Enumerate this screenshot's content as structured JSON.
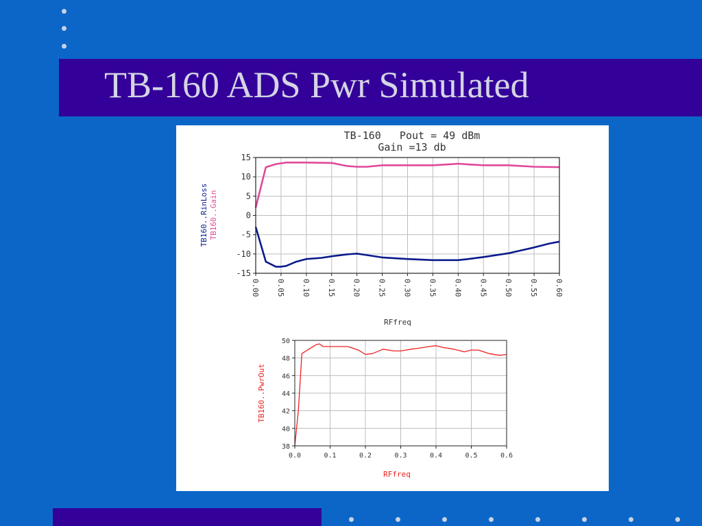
{
  "slide": {
    "title": "TB-160 ADS Pwr Simulated",
    "colors": {
      "background": "#0b66c8",
      "band": "#33009a",
      "title_text": "#d4d4e4",
      "bullet": "#c9d2e6"
    }
  },
  "chart_data": [
    {
      "type": "line",
      "title": "TB-160   Pout = 49 dBm",
      "subtitle": "Gain =13 db",
      "xlabel": "RFfreq",
      "ylabels": [
        "TB160..RinLoss",
        "TB160..Gain"
      ],
      "xlim": [
        0.0,
        0.6
      ],
      "ylim": [
        -15,
        15
      ],
      "xticks": [
        0.0,
        0.05,
        0.1,
        0.15,
        0.2,
        0.25,
        0.3,
        0.35,
        0.4,
        0.45,
        0.5,
        0.55,
        0.6
      ],
      "xtick_labels": [
        "0.00",
        "0.05",
        "0.10",
        "0.15",
        "0.20",
        "0.25",
        "0.30",
        "0.35",
        "0.40",
        "0.45",
        "0.50",
        "0.55",
        "0.60"
      ],
      "yticks": [
        15,
        10,
        5,
        0,
        -5,
        -10,
        -15
      ],
      "ytick_labels": [
        "15",
        "10",
        "5",
        "0",
        "-5",
        "-10",
        "-15"
      ],
      "grid": true,
      "series": [
        {
          "name": "TB160..Gain",
          "color": "#e0489a",
          "x": [
            0.0,
            0.02,
            0.04,
            0.06,
            0.08,
            0.1,
            0.15,
            0.18,
            0.2,
            0.22,
            0.25,
            0.3,
            0.35,
            0.38,
            0.4,
            0.42,
            0.45,
            0.5,
            0.55,
            0.6
          ],
          "y": [
            2.0,
            12.5,
            13.3,
            13.7,
            13.7,
            13.7,
            13.6,
            12.8,
            12.6,
            12.6,
            13.0,
            13.0,
            13.0,
            13.2,
            13.4,
            13.2,
            13.0,
            13.0,
            12.6,
            12.5
          ]
        },
        {
          "name": "TB160..RinLoss",
          "color": "#0a1a8c",
          "x": [
            0.0,
            0.02,
            0.04,
            0.05,
            0.06,
            0.08,
            0.1,
            0.13,
            0.15,
            0.18,
            0.2,
            0.22,
            0.25,
            0.3,
            0.35,
            0.4,
            0.42,
            0.45,
            0.5,
            0.55,
            0.58,
            0.6
          ],
          "y": [
            -3.0,
            -12.0,
            -13.3,
            -13.3,
            -13.1,
            -12.0,
            -11.3,
            -11.0,
            -10.6,
            -10.1,
            -9.9,
            -10.3,
            -10.9,
            -11.3,
            -11.6,
            -11.6,
            -11.3,
            -10.8,
            -9.8,
            -8.3,
            -7.3,
            -6.8
          ]
        }
      ]
    },
    {
      "type": "line",
      "xlabel": "RFfreq",
      "ylabel": "TB160..PwrOut",
      "xlim": [
        0.0,
        0.6
      ],
      "ylim": [
        38,
        50
      ],
      "xticks": [
        0.0,
        0.1,
        0.2,
        0.3,
        0.4,
        0.5,
        0.6
      ],
      "xtick_labels": [
        "0.0",
        "0.1",
        "0.2",
        "0.3",
        "0.4",
        "0.5",
        "0.6"
      ],
      "yticks": [
        50,
        48,
        46,
        44,
        42,
        40,
        38
      ],
      "ytick_labels": [
        "50",
        "48",
        "46",
        "44",
        "42",
        "40",
        "38"
      ],
      "grid": true,
      "series": [
        {
          "name": "TB160..PwrOut",
          "color": "#ee2020",
          "x": [
            0.0,
            0.01,
            0.02,
            0.04,
            0.06,
            0.07,
            0.08,
            0.1,
            0.13,
            0.15,
            0.18,
            0.2,
            0.22,
            0.25,
            0.28,
            0.3,
            0.33,
            0.35,
            0.38,
            0.4,
            0.42,
            0.45,
            0.48,
            0.5,
            0.52,
            0.55,
            0.58,
            0.6
          ],
          "y": [
            38.0,
            42.0,
            48.5,
            49.0,
            49.5,
            49.6,
            49.3,
            49.3,
            49.3,
            49.3,
            48.9,
            48.4,
            48.5,
            49.0,
            48.8,
            48.8,
            49.0,
            49.1,
            49.3,
            49.4,
            49.2,
            49.0,
            48.7,
            48.9,
            48.9,
            48.5,
            48.3,
            48.4
          ]
        }
      ]
    }
  ]
}
